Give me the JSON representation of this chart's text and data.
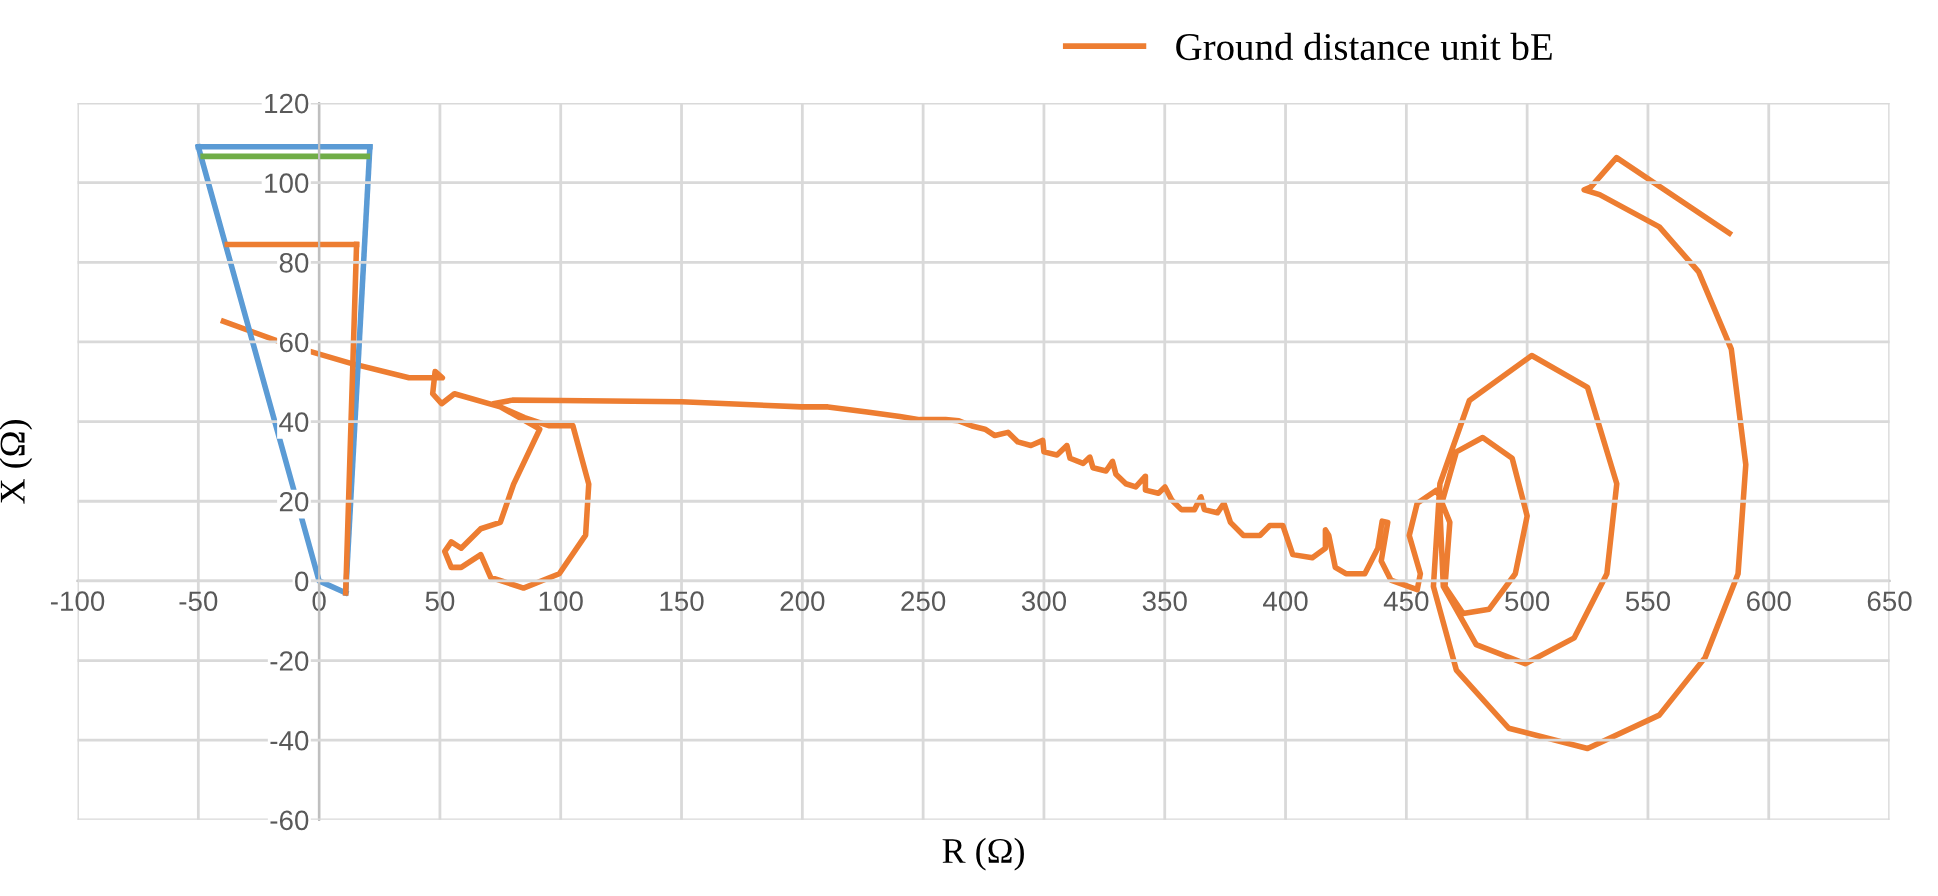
{
  "chart_data": {
    "type": "line",
    "xlabel": "R (Ω)",
    "ylabel": "X (Ω)",
    "xlim": [
      -100,
      650
    ],
    "ylim": [
      -60,
      120
    ],
    "xticks": [
      -100,
      -50,
      0,
      50,
      100,
      150,
      200,
      250,
      300,
      350,
      400,
      450,
      500,
      550,
      600,
      650
    ],
    "yticks": [
      -60,
      -40,
      -20,
      0,
      20,
      40,
      60,
      80,
      100,
      120
    ],
    "grid": true,
    "legend": "top",
    "marker": "none",
    "line_style": "solid",
    "series": [
      {
        "name": "Ground distance unit bE",
        "color": "#ed7d31",
        "x": [
          583.7,
          537,
          526.3,
          523.6,
          530,
          554.7,
          571,
          584.5,
          590.5,
          587.3,
          573.7,
          554.7,
          525,
          492.4,
          470.7,
          461.2,
          463.9,
          476.1,
          501.9,
          525,
          537.1,
          533,
          519.5,
          499.2,
          478.9,
          465.3,
          463.9,
          470.7,
          481.6,
          493.8,
          500,
          495.1,
          484.3,
          473.5,
          466,
          468,
          462.6,
          454.5,
          451.2,
          455.8,
          454.5,
          443.6,
          439.6,
          442.3,
          440,
          438.2,
          432.8,
          425,
          420.6,
          417.9,
          416.5,
          416.5,
          411.1,
          403,
          398.9,
          393.5,
          389.4,
          382.6,
          377.2,
          374.5,
          371.8,
          366.4,
          365,
          362.3,
          356.9,
          352.9,
          350.1,
          347.4,
          342,
          342,
          338,
          333.9,
          329.8,
          328.4,
          325.7,
          320.3,
          319,
          316.2,
          310.8,
          309.5,
          305.4,
          300,
          299.5,
          294.6,
          289.2,
          285.1,
          279.7,
          275.6,
          270.2,
          264.8,
          259.3,
          248.5,
          240.4,
          226.8,
          210.6,
          199.7,
          150,
          100,
          80,
          72,
          85,
          95,
          105,
          111.6,
          110.3,
          99.4,
          84.6,
          71,
          66.9,
          58.8,
          54.7,
          52,
          54.7,
          58.8,
          66.9,
          75,
          80.5,
          91.3,
          80,
          75,
          56,
          50.7,
          47,
          48,
          51,
          46.6,
          37.2,
          12.8,
          -11.6,
          -39.6
        ],
        "values": [
          87.3,
          106.3,
          98.9,
          98.2,
          97,
          88.9,
          77.6,
          58.2,
          29.2,
          1.8,
          -19.2,
          -33.7,
          -42.1,
          -37,
          -22.4,
          -1.4,
          24.4,
          45.3,
          56.6,
          48.6,
          24.4,
          1.8,
          -14.3,
          -20.8,
          -16,
          -1.4,
          17.9,
          32.4,
          36,
          30.8,
          16.3,
          1.8,
          -7.1,
          -8.2,
          -1.4,
          14.7,
          22.8,
          19.5,
          11.4,
          1.8,
          -2.2,
          0.2,
          5,
          14.7,
          15,
          8.2,
          1.8,
          1.8,
          3.4,
          11.4,
          12.8,
          8.2,
          5.8,
          6.6,
          13.9,
          13.9,
          11.4,
          11.4,
          14.7,
          19.5,
          17.1,
          17.9,
          21.1,
          17.9,
          17.9,
          20.3,
          23.6,
          22,
          22.8,
          26.3,
          23.6,
          24.4,
          26.8,
          30,
          27.6,
          28.4,
          31.1,
          29.5,
          30.8,
          34,
          31.6,
          32.4,
          35.3,
          34,
          34.9,
          37.3,
          36.5,
          38.1,
          38.9,
          40.2,
          40.5,
          40.5,
          41.3,
          42.4,
          43.7,
          43.7,
          45,
          45.3,
          45.4,
          44.5,
          41,
          39,
          39,
          24.3,
          11.5,
          1.8,
          -1.8,
          0.9,
          6.6,
          3.4,
          3.4,
          7.4,
          9.8,
          8.2,
          13.1,
          14.7,
          24.3,
          38.1,
          42,
          43.7,
          47,
          44.5,
          47,
          52.6,
          51,
          51,
          51,
          54.7,
          59,
          65.2
        ]
      },
      {
        "color": "#5b9bd5",
        "x": [
          -50,
          0,
          11
        ],
        "values": [
          109,
          0,
          -3
        ]
      },
      {
        "color": "#5b9bd5",
        "x": [
          -50,
          21
        ],
        "values": [
          109,
          109
        ]
      },
      {
        "color": "#5b9bd5",
        "x": [
          11,
          21
        ],
        "values": [
          -3,
          109
        ]
      },
      {
        "color": "#70ad47",
        "x": [
          -48,
          20
        ],
        "values": [
          106.6,
          106.6
        ]
      },
      {
        "color": "#ed7d31",
        "x": [
          -38,
          15.5
        ],
        "values": [
          84.5,
          84.5
        ]
      },
      {
        "color": "#ed7d31",
        "x": [
          11,
          15.5
        ],
        "values": [
          -3,
          84.5
        ]
      }
    ]
  }
}
